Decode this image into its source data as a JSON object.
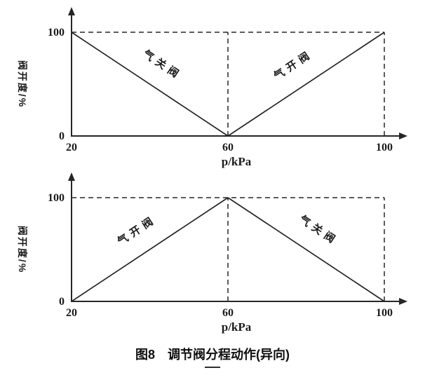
{
  "figure": {
    "caption": "图8　调节阀分程动作(异向)"
  },
  "chart_data": [
    {
      "type": "line",
      "title": "",
      "xlabel": "p/kPa",
      "ylabel": "阀开度/%",
      "xlim": [
        20,
        100
      ],
      "ylim": [
        0,
        100
      ],
      "x_ticks": [
        20,
        60,
        100
      ],
      "y_ticks": [
        0,
        100
      ],
      "grid": false,
      "legend": "none",
      "guides": [
        {
          "type": "h",
          "at": 100,
          "from": 20,
          "to": 100
        },
        {
          "type": "v",
          "at": 60,
          "from": 0,
          "to": 100
        },
        {
          "type": "v",
          "at": 100,
          "from": 0,
          "to": 100
        }
      ],
      "series": [
        {
          "name": "气关阀",
          "x": [
            20,
            60
          ],
          "y": [
            100,
            0
          ]
        },
        {
          "name": "气开阀",
          "x": [
            60,
            100
          ],
          "y": [
            0,
            100
          ]
        }
      ]
    },
    {
      "type": "line",
      "title": "",
      "xlabel": "p/kPa",
      "ylabel": "阀开度/%",
      "xlim": [
        20,
        100
      ],
      "ylim": [
        0,
        100
      ],
      "x_ticks": [
        20,
        60,
        100
      ],
      "y_ticks": [
        0,
        100
      ],
      "grid": false,
      "legend": "none",
      "guides": [
        {
          "type": "h",
          "at": 100,
          "from": 20,
          "to": 100
        },
        {
          "type": "v",
          "at": 60,
          "from": 0,
          "to": 100
        },
        {
          "type": "v",
          "at": 100,
          "from": 0,
          "to": 100
        }
      ],
      "series": [
        {
          "name": "气开阀",
          "x": [
            20,
            60
          ],
          "y": [
            0,
            100
          ]
        },
        {
          "name": "气关阀",
          "x": [
            60,
            100
          ],
          "y": [
            100,
            0
          ]
        }
      ]
    }
  ]
}
